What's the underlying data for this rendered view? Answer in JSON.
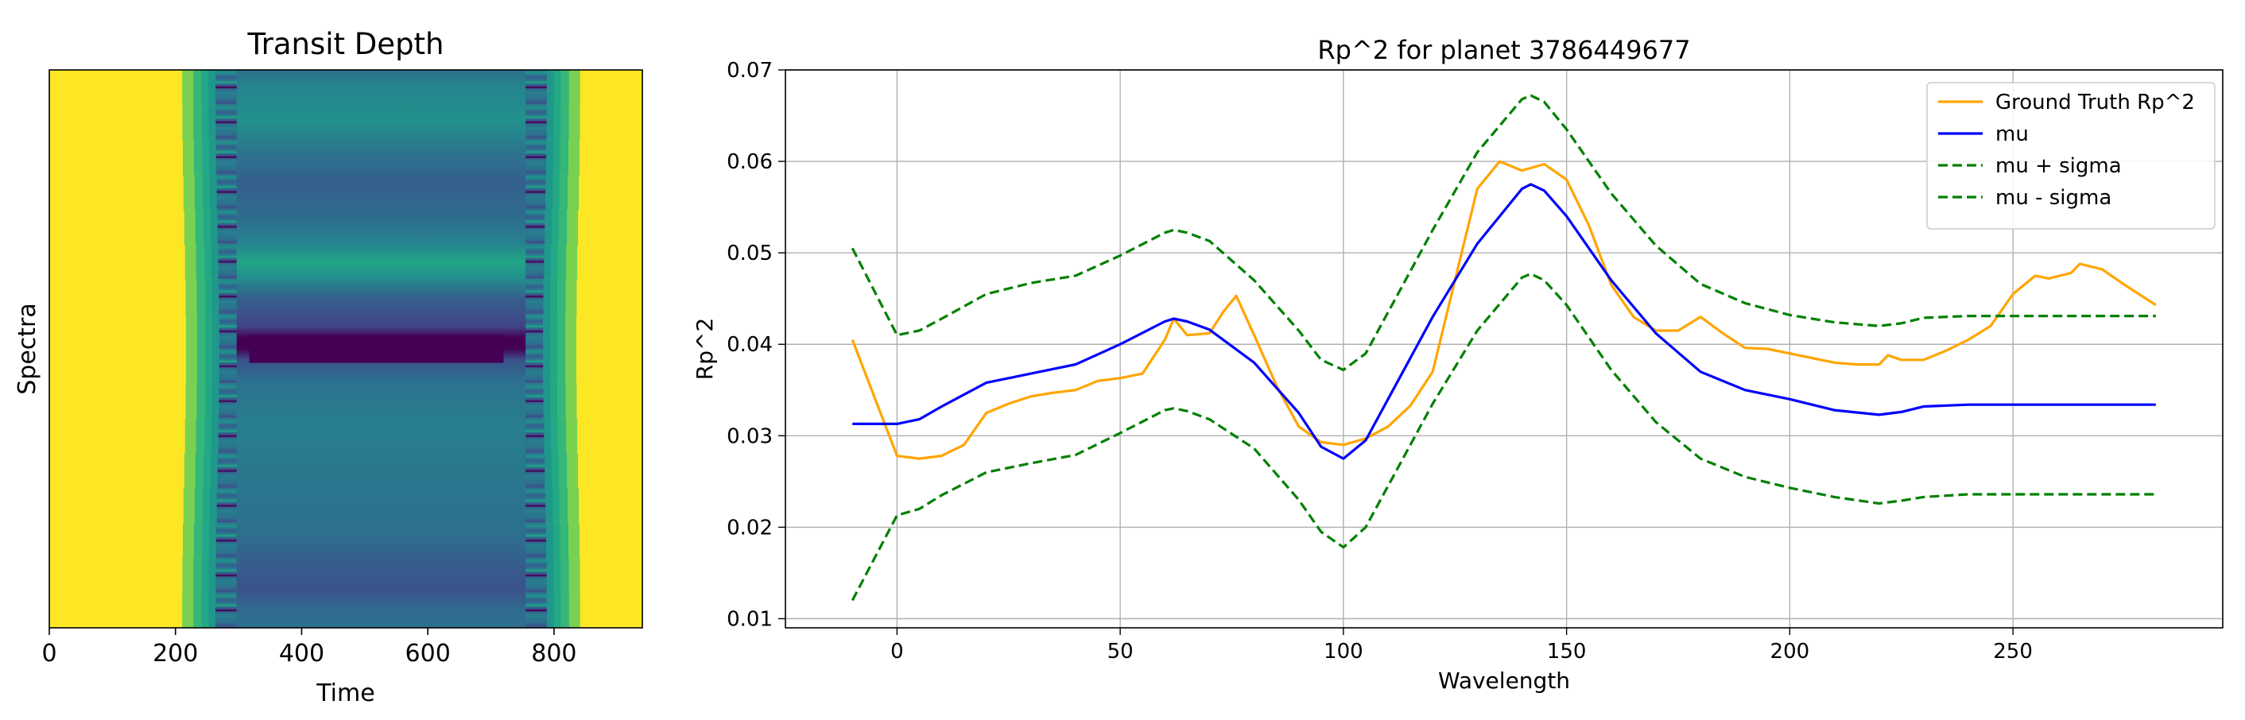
{
  "chart_data": [
    {
      "type": "heatmap",
      "title": "Transit Depth",
      "xlabel": "Time",
      "ylabel": "Spectra",
      "xlim": [
        0,
        940
      ],
      "xticks": [
        "0",
        "200",
        "400",
        "600",
        "800"
      ],
      "xtick_values": [
        0,
        200,
        400,
        600,
        800
      ],
      "colormap": "viridis",
      "transit": {
        "ingress_center": 262,
        "egress_center": 790,
        "edge_width": 22
      },
      "grid": false
    },
    {
      "type": "line",
      "title": "Rp^2 for planet 3786449677",
      "xlabel": "Wavelength",
      "ylabel": "Rp^2",
      "xlim": [
        -25,
        297
      ],
      "ylim": [
        0.009,
        0.07
      ],
      "xticks": [
        "0",
        "50",
        "100",
        "150",
        "200",
        "250"
      ],
      "xtick_values": [
        0,
        50,
        100,
        150,
        200,
        250
      ],
      "yticks": [
        "0.01",
        "0.02",
        "0.03",
        "0.04",
        "0.05",
        "0.06",
        "0.07"
      ],
      "ytick_values": [
        0.01,
        0.02,
        0.03,
        0.04,
        0.05,
        0.06,
        0.07
      ],
      "grid": true,
      "legend_position": "top-right",
      "series": [
        {
          "name": "Ground Truth Rp^2",
          "color": "#ffa500",
          "dash": "solid",
          "x": [
            -10,
            0,
            5,
            10,
            15,
            20,
            25,
            30,
            35,
            40,
            45,
            50,
            55,
            60,
            62,
            65,
            70,
            73,
            76,
            80,
            85,
            90,
            95,
            100,
            105,
            110,
            115,
            120,
            125,
            130,
            135,
            140,
            145,
            150,
            155,
            160,
            165,
            170,
            175,
            180,
            185,
            190,
            195,
            200,
            205,
            210,
            215,
            220,
            222,
            225,
            230,
            235,
            240,
            245,
            250,
            255,
            258,
            263,
            265,
            270,
            275,
            282
          ],
          "y": [
            0.0405,
            0.0278,
            0.0275,
            0.0278,
            0.029,
            0.0325,
            0.0335,
            0.0343,
            0.0347,
            0.035,
            0.036,
            0.0363,
            0.0368,
            0.0405,
            0.0428,
            0.041,
            0.0412,
            0.0435,
            0.0453,
            0.041,
            0.0355,
            0.031,
            0.0293,
            0.029,
            0.0297,
            0.031,
            0.0333,
            0.037,
            0.047,
            0.057,
            0.06,
            0.059,
            0.0597,
            0.058,
            0.053,
            0.0465,
            0.043,
            0.0415,
            0.0415,
            0.043,
            0.0412,
            0.0396,
            0.0395,
            0.039,
            0.0385,
            0.038,
            0.0378,
            0.0378,
            0.0388,
            0.0383,
            0.0383,
            0.0393,
            0.0405,
            0.042,
            0.0455,
            0.0475,
            0.0472,
            0.0478,
            0.0488,
            0.0482,
            0.0465,
            0.0443
          ]
        },
        {
          "name": "mu",
          "color": "#0000ff",
          "dash": "solid",
          "x": [
            -10,
            0,
            5,
            10,
            20,
            30,
            40,
            50,
            60,
            62,
            65,
            70,
            80,
            90,
            95,
            100,
            105,
            110,
            120,
            130,
            140,
            142,
            145,
            150,
            160,
            170,
            180,
            190,
            200,
            210,
            220,
            225,
            230,
            240,
            250,
            260,
            270,
            282
          ],
          "y": [
            0.0313,
            0.0313,
            0.0318,
            0.0332,
            0.0358,
            0.0368,
            0.0378,
            0.04,
            0.0425,
            0.0428,
            0.0425,
            0.0416,
            0.038,
            0.0325,
            0.0288,
            0.0275,
            0.0295,
            0.034,
            0.043,
            0.051,
            0.057,
            0.0575,
            0.0568,
            0.054,
            0.047,
            0.0412,
            0.037,
            0.035,
            0.034,
            0.0328,
            0.0323,
            0.0326,
            0.0332,
            0.0334,
            0.0334,
            0.0334,
            0.0334,
            0.0334
          ]
        },
        {
          "name": "mu + sigma",
          "color": "#008000",
          "dash": "dashed",
          "x": [
            -10,
            0,
            5,
            10,
            20,
            30,
            40,
            50,
            60,
            62,
            65,
            70,
            80,
            90,
            95,
            100,
            105,
            110,
            120,
            130,
            140,
            142,
            145,
            150,
            160,
            170,
            180,
            190,
            200,
            210,
            220,
            225,
            230,
            240,
            250,
            260,
            270,
            282
          ],
          "y": [
            0.0505,
            0.041,
            0.0415,
            0.0428,
            0.0455,
            0.0467,
            0.0475,
            0.0497,
            0.0522,
            0.0525,
            0.0522,
            0.0513,
            0.047,
            0.0415,
            0.0383,
            0.0372,
            0.039,
            0.0435,
            0.0525,
            0.061,
            0.0668,
            0.0672,
            0.0665,
            0.0635,
            0.0565,
            0.0508,
            0.0466,
            0.0445,
            0.0432,
            0.0424,
            0.042,
            0.0423,
            0.0429,
            0.0431,
            0.0431,
            0.0431,
            0.0431,
            0.0431
          ]
        },
        {
          "name": "mu - sigma",
          "color": "#008000",
          "dash": "dashed",
          "x": [
            -10,
            0,
            5,
            10,
            20,
            30,
            40,
            50,
            60,
            62,
            65,
            70,
            80,
            90,
            95,
            100,
            105,
            110,
            120,
            130,
            140,
            142,
            145,
            150,
            160,
            170,
            180,
            190,
            200,
            210,
            220,
            225,
            230,
            240,
            250,
            260,
            270,
            282
          ],
          "y": [
            0.012,
            0.0213,
            0.022,
            0.0235,
            0.026,
            0.027,
            0.0279,
            0.0303,
            0.0328,
            0.033,
            0.0327,
            0.0318,
            0.0286,
            0.023,
            0.0195,
            0.0178,
            0.02,
            0.0245,
            0.0335,
            0.0415,
            0.0473,
            0.0477,
            0.047,
            0.0443,
            0.0372,
            0.0315,
            0.0275,
            0.0255,
            0.0243,
            0.0233,
            0.0226,
            0.0229,
            0.0233,
            0.0236,
            0.0236,
            0.0236,
            0.0236,
            0.0236
          ]
        }
      ]
    }
  ]
}
